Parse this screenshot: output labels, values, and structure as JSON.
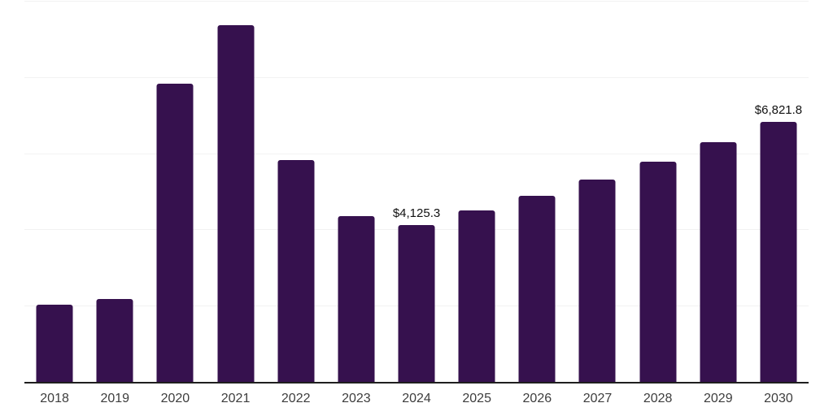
{
  "chart_data": {
    "type": "bar",
    "title": "",
    "xlabel": "",
    "ylabel": "",
    "categories": [
      "2018",
      "2019",
      "2020",
      "2021",
      "2022",
      "2023",
      "2024",
      "2025",
      "2026",
      "2027",
      "2028",
      "2029",
      "2030"
    ],
    "values": [
      2030,
      2180,
      7830,
      9370,
      5820,
      4360,
      4125.3,
      4490,
      4880,
      5300,
      5770,
      6290,
      6821.8
    ],
    "point_labels": [
      "",
      "",
      "",
      "",
      "",
      "",
      "$4,125.3",
      "",
      "",
      "",
      "",
      "",
      "$6,821.8"
    ],
    "ylim": [
      0,
      10000
    ],
    "gridline_step": 2000,
    "grid": true,
    "legend": false,
    "colors": {
      "bar": "#36114E",
      "gridline": "#f2f2f2",
      "axis_line": "#1f1f1f",
      "tick_label": "#3d3d3d",
      "data_label": "#111111"
    }
  }
}
